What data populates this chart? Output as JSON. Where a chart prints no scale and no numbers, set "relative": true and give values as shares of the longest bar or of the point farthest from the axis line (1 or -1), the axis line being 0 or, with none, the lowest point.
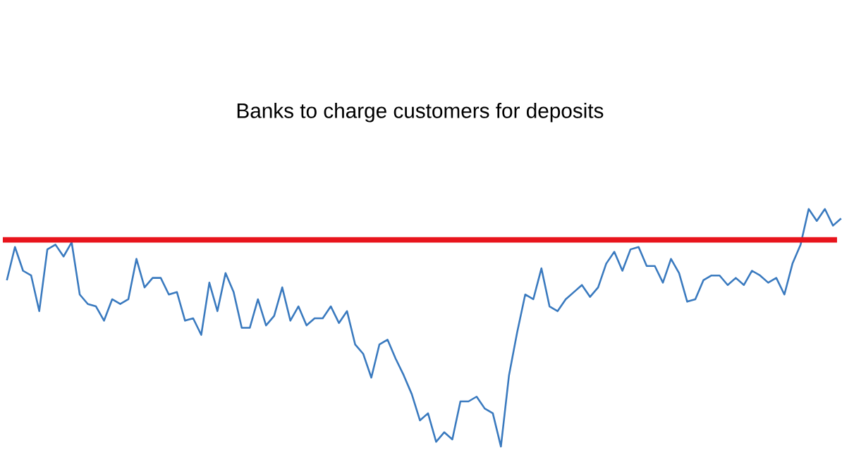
{
  "chart_data": {
    "type": "line",
    "title": "Banks to charge customers for deposits",
    "relative": true,
    "categories": [
      null,
      null,
      null,
      null,
      null,
      null,
      null,
      null,
      null,
      null,
      null,
      null,
      null,
      null,
      null,
      null,
      null,
      null,
      null,
      null,
      null,
      null,
      null,
      null,
      null,
      null,
      null,
      null,
      null,
      null,
      null,
      null,
      null,
      null,
      null,
      null,
      null,
      null,
      null,
      null,
      null,
      null,
      null,
      null,
      null,
      null,
      null,
      null,
      null,
      null,
      null,
      null,
      null,
      null,
      null,
      null,
      null,
      null,
      null,
      null,
      null,
      null,
      null,
      null,
      null,
      null,
      null,
      null,
      null,
      null,
      null,
      null,
      null,
      null,
      null,
      null,
      null,
      null,
      null,
      null,
      null,
      null,
      null,
      null,
      null,
      null,
      null,
      null,
      null,
      null,
      null,
      null,
      null,
      null,
      null,
      null,
      null,
      null,
      null,
      null,
      null,
      null,
      null,
      null
    ],
    "series": [
      {
        "color": "#3a7abf",
        "values": [
          0.7,
          0.84,
          0.74,
          0.72,
          0.57,
          0.83,
          0.85,
          0.8,
          0.86,
          0.64,
          0.6,
          0.59,
          0.53,
          0.62,
          0.6,
          0.62,
          0.79,
          0.67,
          0.71,
          0.71,
          0.64,
          0.65,
          0.53,
          0.54,
          0.47,
          0.69,
          0.57,
          0.73,
          0.65,
          0.5,
          0.5,
          0.62,
          0.51,
          0.55,
          0.67,
          0.53,
          0.59,
          0.51,
          0.54,
          0.54,
          0.59,
          0.52,
          0.57,
          0.43,
          0.39,
          0.29,
          0.43,
          0.45,
          0.37,
          0.3,
          0.22,
          0.11,
          0.14,
          0.02,
          0.06,
          0.03,
          0.19,
          0.19,
          0.21,
          0.16,
          0.14,
          0.0,
          0.3,
          0.48,
          0.64,
          0.62,
          0.75,
          0.59,
          0.57,
          0.62,
          0.65,
          0.68,
          0.63,
          0.67,
          0.77,
          0.82,
          0.74,
          0.83,
          0.84,
          0.76,
          0.76,
          0.69,
          0.79,
          0.73,
          0.61,
          0.62,
          0.7,
          0.72,
          0.72,
          0.68,
          0.71,
          0.68,
          0.74,
          0.72,
          0.69,
          0.71,
          0.64,
          0.77,
          0.85,
          1.0,
          0.95,
          1.0,
          0.93,
          0.96
        ]
      }
    ],
    "ref_lines": [
      {
        "axis": "y",
        "value": 0.87,
        "color": "#e8141c"
      }
    ],
    "marker": "none",
    "line_style": "solid"
  }
}
